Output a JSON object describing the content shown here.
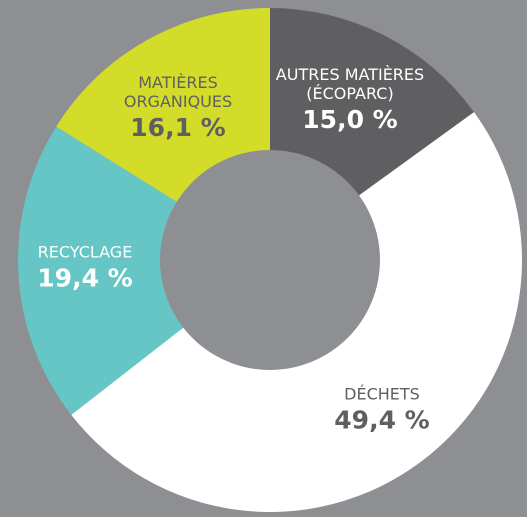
{
  "chart_data": {
    "type": "donut",
    "categories": [
      "AUTRES MATIÈRES (ÉCOPARC)",
      "DÉCHETS",
      "RECYCLAGE",
      "MATIÈRES ORGANIQUES"
    ],
    "values": [
      15.0,
      49.4,
      19.4,
      16.1
    ],
    "value_labels": [
      "15,0 %",
      "49,4 %",
      "19,4 %",
      "16,1 %"
    ],
    "colors": [
      "#5f5f62",
      "#ffffff",
      "#66c6c6",
      "#d4dc2a"
    ]
  }
}
